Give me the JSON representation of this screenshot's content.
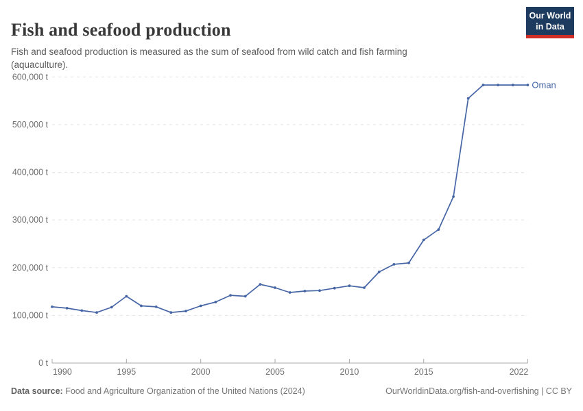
{
  "header": {
    "title": "Fish and seafood production",
    "subtitle": "Fish and seafood production is measured as the sum of seafood from wild catch and fish farming (aquaculture).",
    "logo": {
      "line1": "Our World",
      "line2": "in Data",
      "bg_color": "#1d3a5f",
      "accent_color": "#cf2e26"
    }
  },
  "chart_data": {
    "type": "line",
    "title": "Fish and seafood production",
    "unit": "tonnes",
    "xlim": [
      1990,
      2022
    ],
    "ylim": [
      0,
      600000
    ],
    "grid": "horizontal dashed",
    "legend_position": "end-of-line label",
    "x_tick_labels": [
      "1990",
      "1995",
      "2000",
      "2005",
      "2010",
      "2015",
      "2022"
    ],
    "x_tick_years": [
      1990,
      1995,
      2000,
      2005,
      2010,
      2015,
      2022
    ],
    "y_ticks": [
      0,
      100000,
      200000,
      300000,
      400000,
      500000,
      600000
    ],
    "y_tick_labels": [
      "0 t",
      "100,000 t",
      "200,000 t",
      "300,000 t",
      "400,000 t",
      "500,000 t",
      "600,000 t"
    ],
    "series": [
      {
        "name": "Oman",
        "color": "#4565a5",
        "x": [
          1990,
          1991,
          1992,
          1993,
          1994,
          1995,
          1996,
          1997,
          1998,
          1999,
          2000,
          2001,
          2002,
          2003,
          2004,
          2005,
          2006,
          2007,
          2008,
          2009,
          2010,
          2011,
          2012,
          2013,
          2014,
          2015,
          2016,
          2017,
          2018,
          2019,
          2020,
          2021,
          2022
        ],
        "values": [
          118000,
          115000,
          110000,
          106000,
          117000,
          140000,
          120000,
          118000,
          106000,
          109000,
          120000,
          128000,
          142000,
          140000,
          165000,
          158000,
          148000,
          151000,
          152000,
          157000,
          162000,
          158000,
          191000,
          207000,
          210000,
          258000,
          280000,
          349000,
          555000,
          583000,
          583000,
          583000,
          583000
        ]
      }
    ],
    "colors": {
      "gridline": "#e3e3e3",
      "axis_line": "#a8a8a8",
      "tick_text": "#6e6e6e"
    }
  },
  "footer": {
    "source_label": "Data source:",
    "source_text": "Food and Agriculture Organization of the United Nations (2024)",
    "credit": "OurWorldinData.org/fish-and-overfishing | CC BY"
  }
}
